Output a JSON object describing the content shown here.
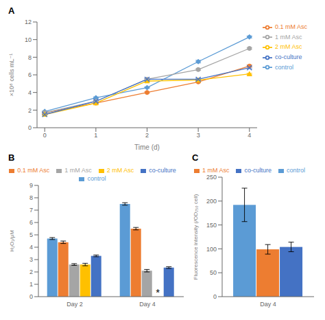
{
  "chart_data": [
    {
      "type": "line",
      "title": "A",
      "xlabel": "Time (d)",
      "ylabel": "×10⁸ cells mL⁻¹",
      "x": [
        0,
        1,
        2,
        3,
        4
      ],
      "xlim": [
        -0.15,
        4.15
      ],
      "xticks": [
        0,
        1,
        2,
        3,
        4
      ],
      "ylim": [
        0,
        12
      ],
      "yticks": [
        0,
        2,
        4,
        6,
        8,
        10,
        12
      ],
      "legend": "right",
      "series": [
        {
          "name": "control",
          "color": "#5B9BD5",
          "marker": "diamond",
          "values": [
            1.85,
            3.4,
            4.55,
            7.5,
            10.3
          ],
          "errors": [
            0.05,
            0.1,
            0.08,
            0.15,
            0.12
          ]
        },
        {
          "name": "0.1 mM Asc",
          "color": "#ED7D31",
          "marker": "circle",
          "values": [
            1.7,
            2.8,
            4.0,
            5.2,
            7.0
          ],
          "errors": [
            0.05,
            0.08,
            0.08,
            0.1,
            0.12
          ]
        },
        {
          "name": "1 mM Asc",
          "color": "#A5A5A5",
          "marker": "circle",
          "values": [
            1.7,
            3.0,
            5.5,
            6.6,
            9.0
          ],
          "errors": [
            0.05,
            0.1,
            0.08,
            0.1,
            0.1
          ]
        },
        {
          "name": "2 mM Asc",
          "color": "#FFC000",
          "marker": "triangle",
          "values": [
            1.5,
            2.8,
            5.3,
            5.4,
            6.1
          ],
          "errors": [
            0.05,
            0.08,
            0.1,
            0.1,
            0.08
          ]
        },
        {
          "name": "co-culture",
          "color": "#4472C4",
          "marker": "x",
          "values": [
            1.5,
            3.0,
            5.5,
            5.5,
            6.8
          ],
          "errors": [
            0.05,
            0.08,
            0.08,
            0.1,
            0.1
          ]
        }
      ]
    },
    {
      "type": "bar",
      "title": "B",
      "ylabel": "H₂O₂/μM",
      "categories": [
        "Day 2",
        "Day 4"
      ],
      "ylim": [
        0,
        9
      ],
      "yticks": [
        0,
        1,
        2,
        3,
        4,
        5,
        6,
        7,
        8,
        9
      ],
      "legend": "top",
      "series": [
        {
          "name": "control",
          "color": "#5B9BD5",
          "values": [
            4.7,
            7.5
          ],
          "errors": [
            0.08,
            0.1
          ]
        },
        {
          "name": "0.1 mM Asc",
          "color": "#ED7D31",
          "values": [
            4.4,
            5.5
          ],
          "errors": [
            0.1,
            0.1
          ]
        },
        {
          "name": "1 mM Asc",
          "color": "#A5A5A5",
          "values": [
            2.6,
            2.1
          ],
          "errors": [
            0.07,
            0.1
          ]
        },
        {
          "name": "2 mM Asc",
          "color": "#FFC000",
          "values": [
            2.6,
            null
          ],
          "errors": [
            0.1,
            null
          ]
        },
        {
          "name": "co-culture",
          "color": "#4472C4",
          "values": [
            3.3,
            2.35
          ],
          "errors": [
            0.07,
            0.07
          ]
        }
      ],
      "annotations": [
        {
          "text": "*",
          "category": "Day 4",
          "series": "2 mM Asc",
          "y": 0.05
        }
      ]
    },
    {
      "type": "bar",
      "title": "C",
      "ylabel": "Fluorescence intensity (/OD₇₅₀ cell)",
      "categories": [
        "Day 4"
      ],
      "ylim": [
        0,
        250
      ],
      "yticks": [
        0,
        50,
        100,
        150,
        200,
        250
      ],
      "legend": "top",
      "series": [
        {
          "name": "control",
          "color": "#5B9BD5",
          "values": [
            192
          ],
          "errors": [
            35
          ]
        },
        {
          "name": "1 mM Asc",
          "color": "#ED7D31",
          "values": [
            99
          ],
          "errors": [
            10
          ]
        },
        {
          "name": "co-culture",
          "color": "#4472C4",
          "values": [
            104
          ],
          "errors": [
            10
          ]
        }
      ]
    }
  ]
}
